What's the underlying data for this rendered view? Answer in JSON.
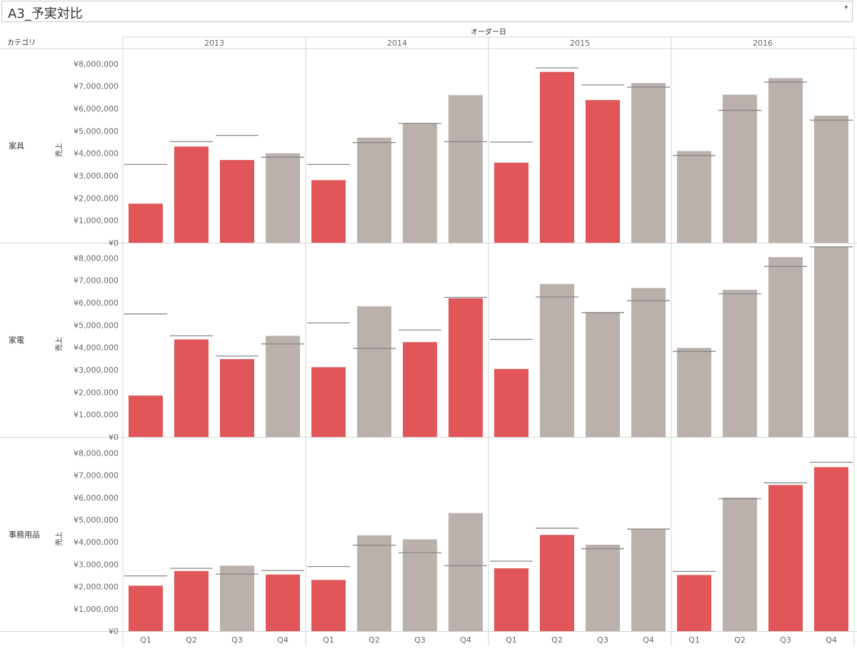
{
  "title": "A3_予実対比",
  "chart_data": {
    "type": "bar",
    "column_header_title": "オーダー日",
    "row_header_title": "カテゴリ",
    "ylabel": "売上",
    "ylim": [
      0,
      8300000
    ],
    "yticks": [
      "¥0",
      "¥1,000,000",
      "¥2,000,000",
      "¥3,000,000",
      "¥4,000,000",
      "¥5,000,000",
      "¥6,000,000",
      "¥7,000,000",
      "¥8,000,000"
    ],
    "ytick_values": [
      0,
      1000000,
      2000000,
      3000000,
      4000000,
      5000000,
      6000000,
      7000000,
      8000000
    ],
    "years": [
      "2013",
      "2014",
      "2015",
      "2016"
    ],
    "quarters": [
      "Q1",
      "Q2",
      "Q3",
      "Q4"
    ],
    "colors": {
      "below_target": "#e15759",
      "met_target": "#bab0ac",
      "target_line": "#888888",
      "grid": "#d4d4d4"
    },
    "rows": [
      {
        "category": "家具",
        "sales": [
          1750000,
          4300000,
          3700000,
          4000000,
          2800000,
          4700000,
          5350000,
          6600000,
          3580000,
          7640000,
          6380000,
          7140000,
          4100000,
          6620000,
          7360000,
          5680000
        ],
        "target": [
          3500000,
          4520000,
          4800000,
          3820000,
          3500000,
          4480000,
          5340000,
          4520000,
          4500000,
          7820000,
          7060000,
          6960000,
          3900000,
          5920000,
          7180000,
          5480000
        ]
      },
      {
        "category": "家電",
        "sales": [
          1850000,
          4360000,
          3480000,
          4520000,
          3120000,
          5840000,
          4240000,
          6200000,
          3040000,
          6840000,
          5580000,
          6660000,
          3980000,
          6580000,
          8040000,
          8500000
        ],
        "target": [
          5500000,
          4520000,
          3620000,
          4160000,
          5100000,
          3960000,
          4780000,
          6240000,
          4360000,
          6260000,
          5560000,
          6100000,
          3820000,
          6400000,
          7620000,
          8500000
        ]
      },
      {
        "category": "事務用品",
        "sales": [
          2040000,
          2700000,
          2940000,
          2540000,
          2300000,
          4300000,
          4120000,
          5300000,
          2820000,
          4320000,
          3880000,
          4580000,
          2520000,
          6000000,
          6560000,
          7360000
        ],
        "target": [
          2480000,
          2820000,
          2560000,
          2720000,
          2900000,
          3860000,
          3520000,
          2940000,
          3140000,
          4620000,
          3700000,
          4580000,
          2680000,
          5940000,
          6660000,
          7580000
        ]
      }
    ]
  }
}
